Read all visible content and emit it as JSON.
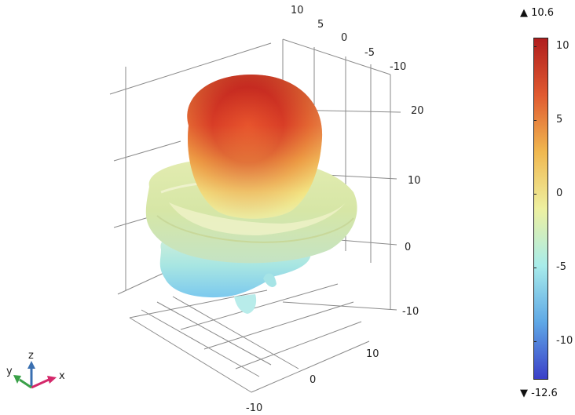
{
  "axes": {
    "top_ticks": [
      "10",
      "5",
      "0",
      "-5",
      "-10"
    ],
    "right_ticks": [
      "20",
      "10",
      "0",
      "-10"
    ],
    "bottom_ticks": [
      "10",
      "0",
      "-10"
    ]
  },
  "triad": {
    "z": "z",
    "y": "y",
    "x": "x"
  },
  "colorbar": {
    "max_label": "▲ 10.6",
    "min_label": "▼ -12.6",
    "max": 10.6,
    "min": -12.6,
    "ticks": [
      "10",
      "5",
      "0",
      "-5",
      "-10"
    ],
    "tick_values": [
      10,
      5,
      0,
      -5,
      -10
    ],
    "colormap": [
      "#3b3fc8",
      "#5fa8e6",
      "#a8ecea",
      "#eef0a0",
      "#f0b850",
      "#e05a30",
      "#b01e1e"
    ]
  }
}
